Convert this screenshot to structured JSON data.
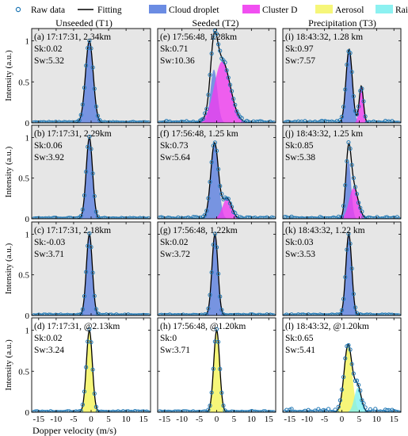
{
  "legend": {
    "entries": [
      {
        "label": "Raw data",
        "kind": "marker",
        "color": "#1f77b4"
      },
      {
        "label": "Fitting",
        "kind": "line",
        "color": "#000000"
      },
      {
        "label": "Cloud droplet",
        "kind": "patch",
        "color": "#5b7fe0"
      },
      {
        "label": "Cluster D",
        "kind": "patch",
        "color": "#f03cf0"
      },
      {
        "label": "Aerosol",
        "kind": "patch",
        "color": "#f5f56a"
      },
      {
        "label": "Rain",
        "kind": "patch",
        "color": "#7ff0f0"
      }
    ]
  },
  "columns": [
    "Unseeded (T1)",
    "Seeded (T2)",
    "Precipitation (T3)"
  ],
  "colors": {
    "cloud": "#5b7fe0",
    "cluster": "#f03cf0",
    "aerosol": "#f5f56a",
    "rain": "#7ff0f0",
    "overlap": "#8a3ee0",
    "aerosol_rain": "#a8e89a",
    "raw": "#1f77b4",
    "fit": "#000000",
    "panel_bg": "#e6e6e6"
  },
  "chart_data": {
    "type": "line",
    "xlabel": "Dopper velocity (m/s)",
    "ylabel": "Intensity (a.u.)",
    "xlim": [
      -17,
      17
    ],
    "ylim": [
      0,
      1.15
    ],
    "xticks": [
      -15,
      -10,
      -5,
      0,
      5,
      10,
      15
    ],
    "yticks": [
      0,
      0.5,
      1
    ],
    "ytick_labels": [
      "0",
      "0.5",
      "1"
    ],
    "panels": [
      {
        "label": "(a) 17:17:31, 2.34km",
        "sk": "Sk:0.02",
        "sw": "Sw:5.32",
        "row": 0,
        "col": 0,
        "gray": true,
        "components": [
          {
            "type": "cloud",
            "mu": -0.5,
            "sigma": 1.1,
            "amp": 1.0
          }
        ],
        "noise": 0.01
      },
      {
        "label": "(e) 17:56:48, 1.28km",
        "sk": "Sk:0.71",
        "sw": "Sw:10.36",
        "row": 0,
        "col": 1,
        "gray": true,
        "components": [
          {
            "type": "cloud",
            "mu": -0.8,
            "sigma": 1.0,
            "amp": 0.65
          },
          {
            "type": "cluster",
            "mu": 1.6,
            "sigma": 2.3,
            "amp": 0.75
          }
        ],
        "noise": 0.02
      },
      {
        "label": "(i) 18:43:32, 1.28 km",
        "sk": "Sk:0.97",
        "sw": "Sw:7.57",
        "row": 0,
        "col": 2,
        "gray": true,
        "components": [
          {
            "type": "cloud",
            "mu": 2.1,
            "sigma": 0.9,
            "amp": 0.9
          },
          {
            "type": "cluster",
            "mu": 5.6,
            "sigma": 0.6,
            "amp": 0.45
          }
        ],
        "noise": 0.02
      },
      {
        "label": "(b) 17:17:31, 2.29km",
        "sk": "Sk:0.06",
        "sw": "Sw:3.92",
        "row": 1,
        "col": 0,
        "gray": true,
        "components": [
          {
            "type": "cloud",
            "mu": -0.5,
            "sigma": 0.9,
            "amp": 1.0
          }
        ],
        "noise": 0.01
      },
      {
        "label": "(f) 17:56:48, 1.25 km",
        "sk": "Sk:0.73",
        "sw": "Sw:5.64",
        "row": 1,
        "col": 1,
        "gray": true,
        "components": [
          {
            "type": "cloud",
            "mu": -0.6,
            "sigma": 1.1,
            "amp": 0.93
          },
          {
            "type": "cluster",
            "mu": 3.0,
            "sigma": 1.3,
            "amp": 0.25
          }
        ],
        "noise": 0.015
      },
      {
        "label": "(j) 18:43:32, 1.25 km",
        "sk": "Sk:0.85",
        "sw": "Sw:5.38",
        "row": 1,
        "col": 2,
        "gray": true,
        "components": [
          {
            "type": "cloud",
            "mu": 1.9,
            "sigma": 0.75,
            "amp": 0.72
          },
          {
            "type": "cluster",
            "mu": 3.4,
            "sigma": 1.3,
            "amp": 0.38
          }
        ],
        "noise": 0.02
      },
      {
        "label": "(c) 17:17:31, 2.18km",
        "sk": "Sk:-0.03",
        "sw": "Sw:3.71",
        "row": 2,
        "col": 0,
        "gray": true,
        "components": [
          {
            "type": "cloud",
            "mu": -0.5,
            "sigma": 0.85,
            "amp": 1.0
          }
        ],
        "noise": 0.01
      },
      {
        "label": "(g) 17:56:48, 1.22km",
        "sk": "Sk:0.02",
        "sw": "Sw:3.72",
        "row": 2,
        "col": 1,
        "gray": true,
        "components": [
          {
            "type": "cloud",
            "mu": -0.5,
            "sigma": 0.85,
            "amp": 1.0
          }
        ],
        "noise": 0.01
      },
      {
        "label": "(k) 18:43:32, 1.22 km",
        "sk": "Sk:0.03",
        "sw": "Sw:3.53",
        "row": 2,
        "col": 2,
        "gray": true,
        "components": [
          {
            "type": "cloud",
            "mu": 2.0,
            "sigma": 0.85,
            "amp": 1.0
          }
        ],
        "noise": 0.01
      },
      {
        "label": "(d) 17:17:31, @2.13km",
        "sk": "Sk:0.02",
        "sw": "Sw:3.24",
        "row": 3,
        "col": 0,
        "gray": false,
        "components": [
          {
            "type": "aerosol",
            "mu": -0.5,
            "sigma": 0.85,
            "amp": 1.0
          }
        ],
        "noise": 0.01
      },
      {
        "label": "(h) 17:56:48, @1.20km",
        "sk": "Sk:0",
        "sw": "Sw:3.71",
        "row": 3,
        "col": 1,
        "gray": false,
        "components": [
          {
            "type": "aerosol",
            "mu": 0.0,
            "sigma": 0.85,
            "amp": 1.0
          }
        ],
        "noise": 0.01
      },
      {
        "label": "(l) 18:43:32, @1.20km",
        "sk": "Sk:0.65",
        "sw": "Sw:5.41",
        "row": 3,
        "col": 2,
        "gray": false,
        "components": [
          {
            "type": "aerosol",
            "mu": 1.8,
            "sigma": 1.15,
            "amp": 0.82
          },
          {
            "type": "rain",
            "mu": 4.6,
            "sigma": 1.0,
            "amp": 0.3
          }
        ],
        "noise": 0.03
      }
    ]
  }
}
